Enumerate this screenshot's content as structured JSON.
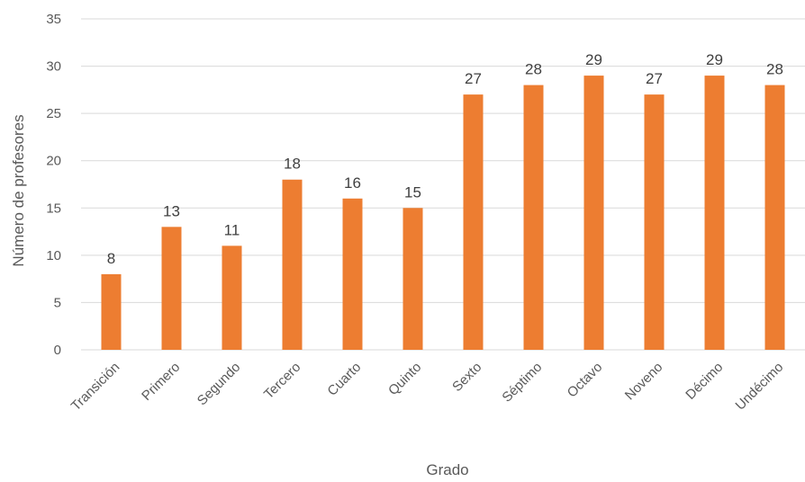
{
  "chart_data": {
    "type": "bar",
    "categories": [
      "Transición",
      "Primero",
      "Segundo",
      "Tercero",
      "Cuarto",
      "Quinto",
      "Sexto",
      "Séptimo",
      "Octavo",
      "Noveno",
      "Décimo",
      "Undécimo"
    ],
    "series": [
      {
        "values": [
          8,
          13,
          11,
          18,
          16,
          15,
          27,
          28,
          29,
          27,
          29,
          28
        ]
      }
    ],
    "xlabel": "Grado",
    "ylabel": "Número de profesores",
    "ylim": [
      0,
      35
    ],
    "yticks": [
      0,
      5,
      10,
      15,
      20,
      25,
      30,
      35
    ],
    "grid": true,
    "legend": "none",
    "colors": {
      "bar": "#ED7D31",
      "grid": "#D9D9D9",
      "text": "#595959"
    }
  }
}
